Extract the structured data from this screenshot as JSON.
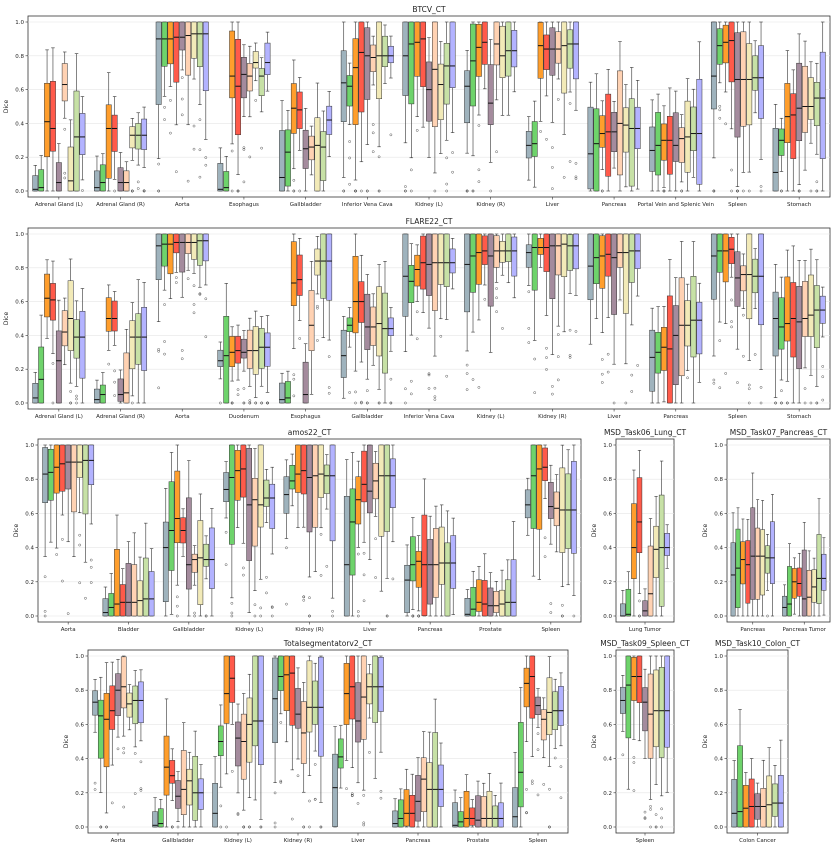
{
  "palette": [
    "#9fb3bd",
    "#6ed36b",
    "#ff9e2c",
    "#ff5a4a",
    "#a48b9d",
    "#ffd2b3",
    "#f2eab8",
    "#c7e1a6",
    "#b3b3ff"
  ],
  "chart_data": [
    {
      "type": "box",
      "title": "BTCV_CT",
      "ylabel": "Dice",
      "ylim": [
        0,
        1.0
      ],
      "yticks": [
        "0.0",
        "0.2",
        "0.4",
        "0.6",
        "0.8",
        "1.0"
      ],
      "grid": true,
      "categories": [
        "Adrenal Gland (L)",
        "Adrenal Gland (R)",
        "Aorta",
        "Esophagus",
        "Gallbladder",
        "Inferior Vena Cava",
        "Kidney (L)",
        "Kidney (R)",
        "Liver",
        "Pancreas",
        "Portal Vein and Splenic Vein",
        "Spleen",
        "Stomach"
      ],
      "medians": [
        [
          0.01,
          0.02,
          0.41,
          0.37,
          0.05,
          0.63,
          0.06,
          0.32,
          0.32
        ],
        [
          0.02,
          0.05,
          0.37,
          0.37,
          0.05,
          0.05,
          0.33,
          0.33,
          0.33
        ],
        [
          0.9,
          0.9,
          0.9,
          0.91,
          0.91,
          0.92,
          0.93,
          0.93,
          0.93
        ],
        [
          0.01,
          0.02,
          0.68,
          0.62,
          0.69,
          0.68,
          0.76,
          0.68,
          0.76
        ],
        [
          0.08,
          0.23,
          0.49,
          0.48,
          0.25,
          0.26,
          0.27,
          0.26,
          0.42
        ],
        [
          0.64,
          0.62,
          0.73,
          0.82,
          0.8,
          0.79,
          0.8,
          0.8,
          0.8
        ],
        [
          0.8,
          0.87,
          0.88,
          0.9,
          0.6,
          0.72,
          0.63,
          0.74,
          0.74
        ],
        [
          0.62,
          0.77,
          0.85,
          0.88,
          0.52,
          0.87,
          0.8,
          0.83,
          0.83
        ],
        [
          0.27,
          0.28,
          0.86,
          0.84,
          0.84,
          0.84,
          0.86,
          0.87,
          0.87
        ],
        [
          0.22,
          0.28,
          0.34,
          0.35,
          0.35,
          0.4,
          0.39,
          0.37,
          0.37
        ],
        [
          0.24,
          0.27,
          0.3,
          0.3,
          0.27,
          0.31,
          0.32,
          0.34,
          0.34
        ],
        [
          0.68,
          0.86,
          0.88,
          0.89,
          0.66,
          0.66,
          0.66,
          0.67,
          0.67
        ],
        [
          0.11,
          0.3,
          0.44,
          0.45,
          0.49,
          0.5,
          0.5,
          0.55,
          0.55
        ]
      ]
    },
    {
      "type": "box",
      "title": "FLARE22_CT",
      "ylabel": "Dice",
      "ylim": [
        0,
        1.0
      ],
      "yticks": [
        "0.0",
        "0.2",
        "0.4",
        "0.6",
        "0.8",
        "1.0"
      ],
      "grid": true,
      "categories": [
        "Adrenal Gland (L)",
        "Adrenal Gland (R)",
        "Aorta",
        "Duodenum",
        "Esophagus",
        "Gallbladder",
        "Inferior Vena Cava",
        "Kidney (L)",
        "Kidney (R)",
        "Liver",
        "Pancreas",
        "Spleen",
        "Stomach"
      ],
      "medians": [
        [
          0.03,
          0.14,
          0.62,
          0.61,
          0.25,
          0.42,
          0.5,
          0.39,
          0.39
        ],
        [
          0.02,
          0.05,
          0.5,
          0.5,
          0.05,
          0.06,
          0.39,
          0.39,
          0.39
        ],
        [
          0.93,
          0.94,
          0.94,
          0.95,
          0.95,
          0.95,
          0.95,
          0.96,
          0.96
        ],
        [
          0.25,
          0.28,
          0.3,
          0.31,
          0.3,
          0.31,
          0.31,
          0.33,
          0.33
        ],
        [
          0.02,
          0.03,
          0.71,
          0.73,
          0.05,
          0.46,
          0.84,
          0.84,
          0.84
        ],
        [
          0.28,
          0.46,
          0.6,
          0.6,
          0.45,
          0.45,
          0.47,
          0.44,
          0.44
        ],
        [
          0.75,
          0.72,
          0.79,
          0.83,
          0.82,
          0.83,
          0.83,
          0.83,
          0.83
        ],
        [
          0.82,
          0.87,
          0.89,
          0.9,
          0.87,
          0.9,
          0.9,
          0.9,
          0.9
        ],
        [
          0.89,
          0.92,
          0.92,
          0.92,
          0.93,
          0.93,
          0.94,
          0.93,
          0.93
        ],
        [
          0.81,
          0.86,
          0.87,
          0.88,
          0.86,
          0.89,
          0.89,
          0.9,
          0.9
        ],
        [
          0.27,
          0.3,
          0.33,
          0.32,
          0.4,
          0.46,
          0.46,
          0.49,
          0.49
        ],
        [
          0.87,
          0.9,
          0.9,
          0.91,
          0.74,
          0.76,
          0.76,
          0.75,
          0.75
        ],
        [
          0.5,
          0.45,
          0.47,
          0.5,
          0.48,
          0.5,
          0.52,
          0.55,
          0.55
        ]
      ]
    },
    {
      "type": "box",
      "title": "amos22_CT",
      "ylabel": "Dice",
      "ylim": [
        0,
        1.0
      ],
      "yticks": [
        "0.0",
        "0.2",
        "0.4",
        "0.6",
        "0.8",
        "1.0"
      ],
      "grid": true,
      "categories": [
        "Aorta",
        "Bladder",
        "Gallbladder",
        "Kidney (L)",
        "Kidney (R)",
        "Liver",
        "Pancreas",
        "Prostate",
        "Spleen"
      ],
      "medians": [
        [
          0.83,
          0.84,
          0.87,
          0.89,
          0.9,
          0.9,
          0.9,
          0.91,
          0.91
        ],
        [
          0.02,
          0.05,
          0.07,
          0.08,
          0.08,
          0.08,
          0.09,
          0.1,
          0.1
        ],
        [
          0.4,
          0.5,
          0.57,
          0.5,
          0.3,
          0.33,
          0.34,
          0.33,
          0.33
        ],
        [
          0.74,
          0.81,
          0.85,
          0.86,
          0.65,
          0.68,
          0.65,
          0.69,
          0.69
        ],
        [
          0.71,
          0.79,
          0.83,
          0.85,
          0.81,
          0.82,
          0.83,
          0.82,
          0.82
        ],
        [
          0.3,
          0.55,
          0.68,
          0.77,
          0.73,
          0.79,
          0.82,
          0.82,
          0.82
        ],
        [
          0.21,
          0.3,
          0.32,
          0.3,
          0.3,
          0.3,
          0.31,
          0.31,
          0.31
        ],
        [
          0.01,
          0.04,
          0.08,
          0.07,
          0.06,
          0.06,
          0.07,
          0.08,
          0.08
        ],
        [
          0.65,
          0.82,
          0.86,
          0.87,
          0.64,
          0.63,
          0.62,
          0.62,
          0.62
        ]
      ]
    },
    {
      "type": "box",
      "title": "MSD_Task06_Lung_CT",
      "ylabel": "Dice",
      "ylim": [
        0,
        1.0
      ],
      "yticks": [
        "0.0",
        "0.2",
        "0.4",
        "0.6",
        "0.8",
        "1.0"
      ],
      "grid": true,
      "categories": [
        "Lung Tumor"
      ],
      "medians": [
        [
          0.0,
          0.01,
          0.4,
          0.55,
          0.03,
          0.13,
          0.39,
          0.4,
          0.4
        ]
      ]
    },
    {
      "type": "box",
      "title": "MSD_Task07_Pancreas_CT",
      "ylabel": "Dice",
      "ylim": [
        0,
        1.0
      ],
      "yticks": [
        "0.0",
        "0.2",
        "0.4",
        "0.6",
        "0.8",
        "1.0"
      ],
      "grid": true,
      "categories": [
        "Pancreas",
        "Pancreas Tumor"
      ],
      "medians": [
        [
          0.24,
          0.28,
          0.33,
          0.3,
          0.35,
          0.35,
          0.35,
          0.34,
          0.34
        ],
        [
          0.05,
          0.07,
          0.2,
          0.19,
          0.1,
          0.11,
          0.17,
          0.22,
          0.22
        ]
      ]
    },
    {
      "type": "box",
      "title": "Totalsegmentatorv2_CT",
      "ylabel": "Dice",
      "ylim": [
        0,
        1.0
      ],
      "yticks": [
        "0.0",
        "0.2",
        "0.4",
        "0.6",
        "0.8",
        "1.0"
      ],
      "grid": true,
      "categories": [
        "Aorta",
        "Gallbladder",
        "Kidney (L)",
        "Kidney (R)",
        "Liver",
        "Pancreas",
        "Prostate",
        "Spleen"
      ],
      "medians": [
        [
          0.73,
          0.65,
          0.63,
          0.68,
          0.8,
          0.82,
          0.72,
          0.74,
          0.74
        ],
        [
          0.01,
          0.02,
          0.35,
          0.3,
          0.18,
          0.22,
          0.27,
          0.2,
          0.2
        ],
        [
          0.08,
          0.5,
          0.78,
          0.87,
          0.52,
          0.5,
          0.6,
          0.62,
          0.62
        ],
        [
          0.75,
          0.88,
          0.89,
          0.9,
          0.66,
          0.55,
          0.7,
          0.7,
          0.7
        ],
        [
          0.23,
          0.41,
          0.78,
          0.82,
          0.62,
          0.76,
          0.82,
          0.82,
          0.82
        ],
        [
          0.02,
          0.05,
          0.08,
          0.08,
          0.15,
          0.28,
          0.22,
          0.22,
          0.22
        ],
        [
          0.01,
          0.03,
          0.05,
          0.05,
          0.04,
          0.05,
          0.05,
          0.05,
          0.05
        ],
        [
          0.06,
          0.32,
          0.84,
          0.88,
          0.71,
          0.63,
          0.67,
          0.68,
          0.68
        ]
      ]
    },
    {
      "type": "box",
      "title": "MSD_Task09_Spleen_CT",
      "ylabel": "Dice",
      "ylim": [
        0,
        1.0
      ],
      "yticks": [
        "0.0",
        "0.2",
        "0.4",
        "0.6",
        "0.8",
        "1.0"
      ],
      "grid": true,
      "categories": [
        "Spleen"
      ],
      "medians": [
        [
          0.74,
          0.83,
          0.88,
          0.88,
          0.73,
          0.66,
          0.68,
          0.68,
          0.68
        ]
      ]
    },
    {
      "type": "box",
      "title": "MSD_Task10_Colon_CT",
      "ylabel": "Dice",
      "ylim": [
        0,
        1.0
      ],
      "yticks": [
        "0.0",
        "0.2",
        "0.4",
        "0.6",
        "0.8",
        "1.0"
      ],
      "grid": true,
      "categories": [
        "Colon Cancer"
      ],
      "medians": [
        [
          0.08,
          0.09,
          0.11,
          0.12,
          0.12,
          0.12,
          0.13,
          0.14,
          0.14
        ]
      ]
    }
  ]
}
